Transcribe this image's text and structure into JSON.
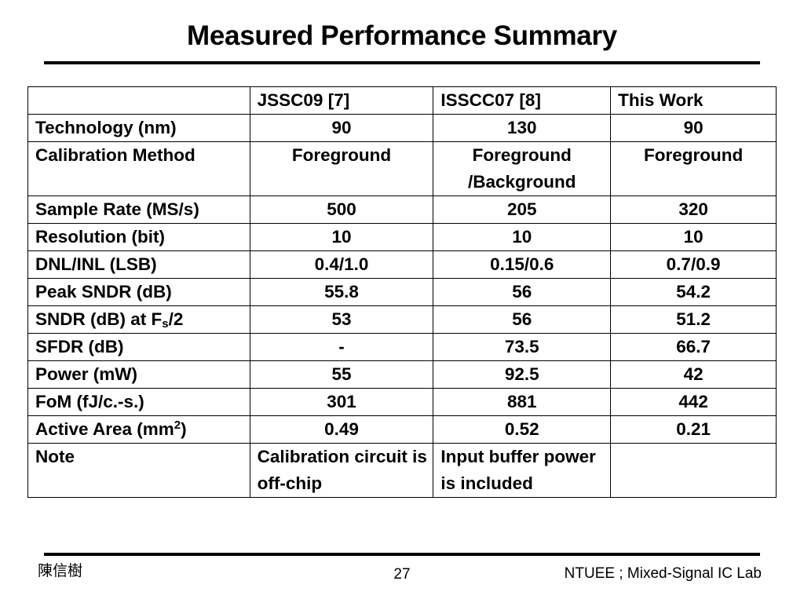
{
  "slide": {
    "title": "Measured Performance Summary"
  },
  "table": {
    "headers": [
      "",
      "JSSC09 [7]",
      "ISSCC07 [8]",
      "This Work"
    ],
    "rows": [
      {
        "label": "Technology (nm)",
        "values": [
          "90",
          "130",
          "90"
        ]
      },
      {
        "label": "Calibration Method",
        "values": [
          "Foreground",
          "Foreground /Background",
          "Foreground"
        ]
      },
      {
        "label": "Sample Rate (MS/s)",
        "values": [
          "500",
          "205",
          "320"
        ]
      },
      {
        "label": "Resolution (bit)",
        "values": [
          "10",
          "10",
          "10"
        ]
      },
      {
        "label": "DNL/INL (LSB)",
        "values": [
          "0.4/1.0",
          "0.15/0.6",
          "0.7/0.9"
        ]
      },
      {
        "label": "Peak SNDR (dB)",
        "values": [
          "55.8",
          "56",
          "54.2"
        ]
      },
      {
        "label_parts": [
          "SNDR (dB) at F",
          "s",
          "/2"
        ],
        "values": [
          "53",
          "56",
          "51.2"
        ]
      },
      {
        "label": "SFDR (dB)",
        "values": [
          "-",
          "73.5",
          "66.7"
        ]
      },
      {
        "label": "Power (mW)",
        "values": [
          "55",
          "92.5",
          "42"
        ]
      },
      {
        "label": "FoM (fJ/c.-s.)",
        "values": [
          "301",
          "881",
          "442"
        ]
      },
      {
        "label_parts": [
          "Active Area (mm",
          "2",
          ")"
        ],
        "values": [
          "0.49",
          "0.52",
          "0.21"
        ]
      },
      {
        "label": "Note",
        "values": [
          "Calibration circuit is off-chip",
          "Input buffer power is included",
          ""
        ]
      }
    ]
  },
  "footer": {
    "author": "陳信樹",
    "page_number": "27",
    "lab": "NTUEE ; Mixed-Signal IC Lab"
  }
}
